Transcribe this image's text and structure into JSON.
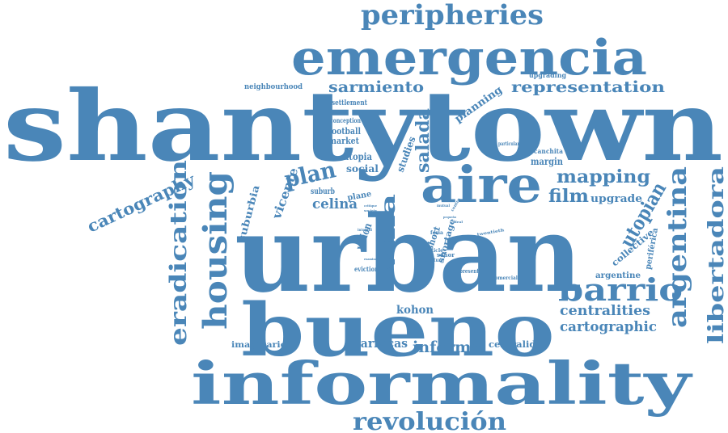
{
  "style": {
    "word_color": "#4a86b8",
    "background": "#ffffff"
  },
  "words": [
    "shantytown",
    "urban",
    "bueno",
    "informality",
    "emergencia",
    "aire",
    "peripheries",
    "representation",
    "sarmiento",
    "revolución",
    "housing",
    "eradication",
    "argentina",
    "libertadora",
    "barrio",
    "villa",
    "plan",
    "mapping",
    "film",
    "cartography",
    "centralities",
    "cartographic",
    "utopian",
    "informal",
    "barracas",
    "kohon",
    "salada",
    "celina",
    "vicente",
    "suburbia",
    "social",
    "utopia",
    "studies",
    "planning",
    "upgrade",
    "upgrading",
    "margin",
    "collective",
    "periférica",
    "argentine",
    "centralidad",
    "imaginaries",
    "neighbourhood",
    "settlement",
    "conception",
    "football",
    "market",
    "suburb",
    "plane",
    "shortage",
    "short",
    "señor",
    "vision",
    "canchita",
    "particular",
    "eviction",
    "present",
    "comercial",
    "article",
    "century",
    "twentieth",
    "feria",
    "integral",
    "centro",
    "mutual",
    "society",
    "critique",
    "ciudad",
    "examine",
    "ideal",
    "pequeño",
    "world"
  ]
}
